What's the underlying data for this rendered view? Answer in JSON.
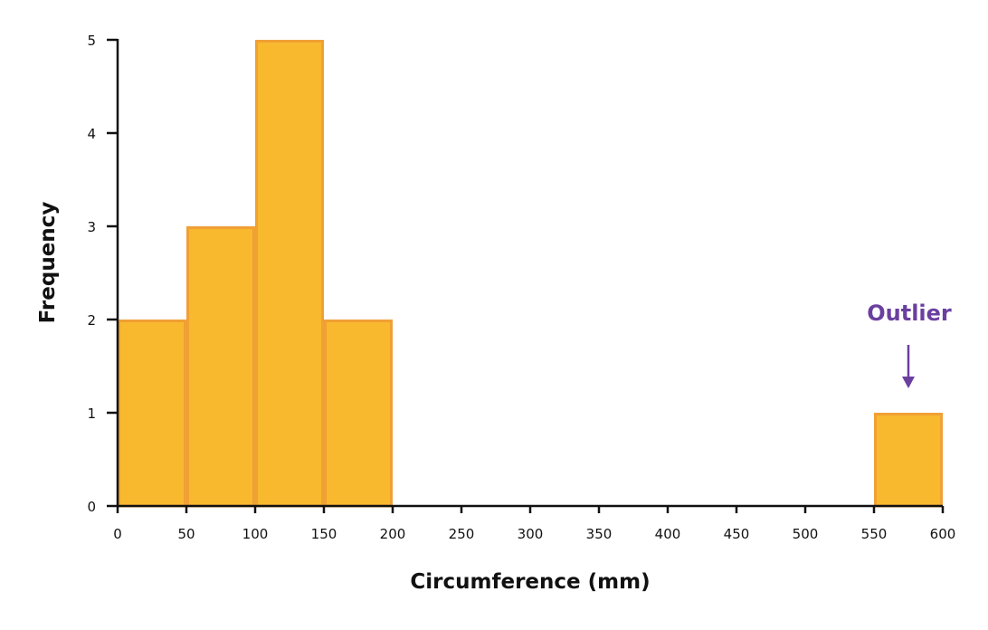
{
  "chart_data": {
    "type": "bar",
    "subtype": "histogram",
    "title": "",
    "xlabel": "Circumference (mm)",
    "ylabel": "Frequency",
    "xlim": [
      0,
      600
    ],
    "ylim": [
      0,
      5
    ],
    "x_ticks": [
      0,
      50,
      100,
      150,
      200,
      250,
      300,
      350,
      400,
      450,
      500,
      550,
      600
    ],
    "y_ticks": [
      0,
      1,
      2,
      3,
      4,
      5
    ],
    "bins": [
      {
        "start": 0,
        "end": 50,
        "value": 2
      },
      {
        "start": 50,
        "end": 100,
        "value": 3
      },
      {
        "start": 100,
        "end": 150,
        "value": 5
      },
      {
        "start": 150,
        "end": 200,
        "value": 2
      },
      {
        "start": 550,
        "end": 600,
        "value": 1
      }
    ],
    "categories": [
      "0-50",
      "50-100",
      "100-150",
      "150-200",
      "550-600"
    ],
    "values": [
      2,
      3,
      5,
      2,
      1
    ],
    "grid": false,
    "legend": null,
    "annotations": [
      {
        "text": "Outlier",
        "target_bin": "550-600",
        "arrow": "down"
      }
    ],
    "colors": {
      "bar_fill": "#f8b92e",
      "bar_edge": "#f0a035",
      "axis": "#111111",
      "annotation": "#6b3fa0"
    }
  }
}
